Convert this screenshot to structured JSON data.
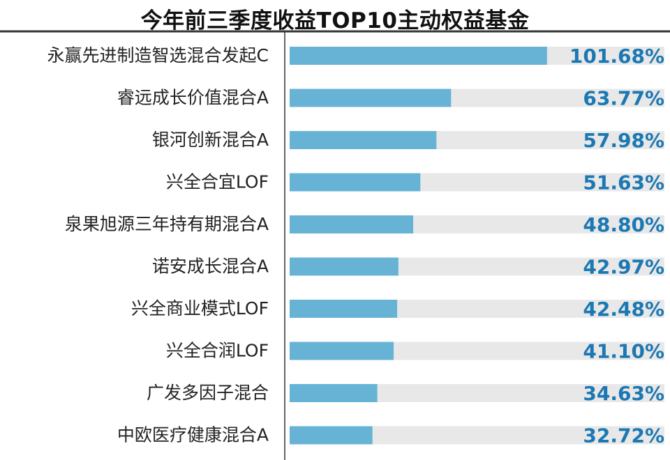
{
  "chart_data": {
    "type": "bar",
    "orientation": "horizontal",
    "title": "今年前三季度收益TOP10主动权益基金",
    "categories": [
      "永赢先进制造智选混合发起C",
      "睿远成长价值混合A",
      "银河创新混合A",
      "兴全合宜LOF",
      "泉果旭源三年持有期混合A",
      "诺安成长混合A",
      "兴全商业模式LOF",
      "兴全合润LOF",
      "广发多因子混合",
      "中欧医疗健康混合A"
    ],
    "values": [
      101.68,
      63.77,
      57.98,
      51.63,
      48.8,
      42.97,
      42.48,
      41.1,
      34.63,
      32.72
    ],
    "value_labels": [
      "101.68%",
      "63.77%",
      "57.98%",
      "51.63%",
      "48.80%",
      "42.97%",
      "42.48%",
      "41.10%",
      "34.63%",
      "32.72%"
    ],
    "xlim": [
      0,
      102
    ],
    "unit": "%",
    "grid": false,
    "legend": "none",
    "colors": {
      "bar": "#67b3d6",
      "track": "#e8e8e8",
      "value_text": "#1b78b3",
      "label_text": "#222222",
      "title_text": "#111111",
      "rule": "#333333"
    }
  }
}
